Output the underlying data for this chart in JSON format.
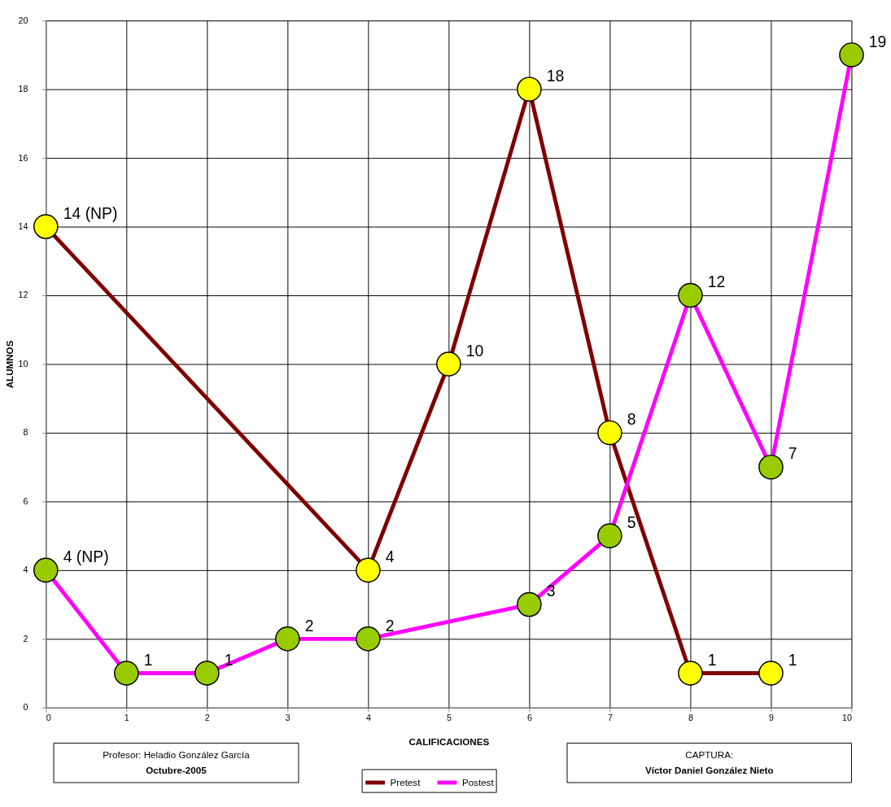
{
  "chart_data": {
    "type": "line",
    "xlabel": "CALIFICACIONES",
    "ylabel": "ALUMNOS",
    "xlim": [
      0,
      10
    ],
    "xticks": [
      0,
      1,
      2,
      3,
      4,
      5,
      6,
      7,
      8,
      9,
      10
    ],
    "ylim": [
      0,
      20
    ],
    "yticks": [
      0,
      2,
      4,
      6,
      8,
      10,
      12,
      14,
      16,
      18,
      20
    ],
    "grid": true,
    "legend": "bottom",
    "marker": "circle",
    "line_style": "solid",
    "series": [
      {
        "name": "Pretest",
        "color": "#800000",
        "x": [
          0,
          4,
          5,
          6,
          7,
          8,
          9
        ],
        "values": [
          14,
          4,
          10,
          18,
          8,
          1,
          1
        ],
        "value_labels": [
          "14 (NP)",
          "4",
          "10",
          "18",
          "8",
          "1",
          "1"
        ]
      },
      {
        "name": "Postest",
        "color": "#ff00ff",
        "x": [
          0,
          1,
          2,
          3,
          4,
          6,
          7,
          8,
          9,
          10
        ],
        "values": [
          4,
          1,
          1,
          2,
          2,
          3,
          5,
          12,
          7,
          19
        ],
        "value_labels": [
          "4 (NP)",
          "1",
          "1",
          "2",
          "2",
          "3",
          "5",
          "12",
          "7",
          "19"
        ]
      }
    ],
    "annotations": [
      "Profesor: Heladio González García",
      "Octubre-2005",
      "CAPTURA:",
      "Víctor Daniel González Nieto"
    ]
  }
}
